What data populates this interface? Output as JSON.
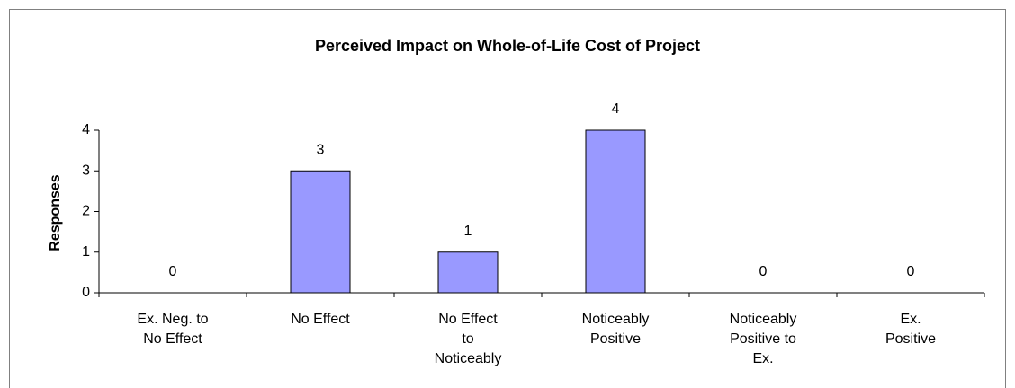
{
  "chart_data": {
    "type": "bar",
    "title": "Perceived Impact on Whole-of-Life Cost of Project",
    "y_label": "Responses",
    "categories": [
      [
        "Ex. Neg. to",
        "No Effect"
      ],
      [
        "No Effect"
      ],
      [
        "No Effect",
        "to",
        "Noticeably"
      ],
      [
        "Noticeably",
        "Positive"
      ],
      [
        "Noticeably",
        "Positive to",
        "Ex."
      ],
      [
        "Ex.",
        "Positive"
      ]
    ],
    "values": [
      0,
      3,
      1,
      4,
      0,
      0
    ],
    "color": "#9999ff",
    "ylim": [
      0,
      4
    ],
    "yticks": [
      0,
      1,
      2,
      3,
      4
    ],
    "grid": false
  }
}
